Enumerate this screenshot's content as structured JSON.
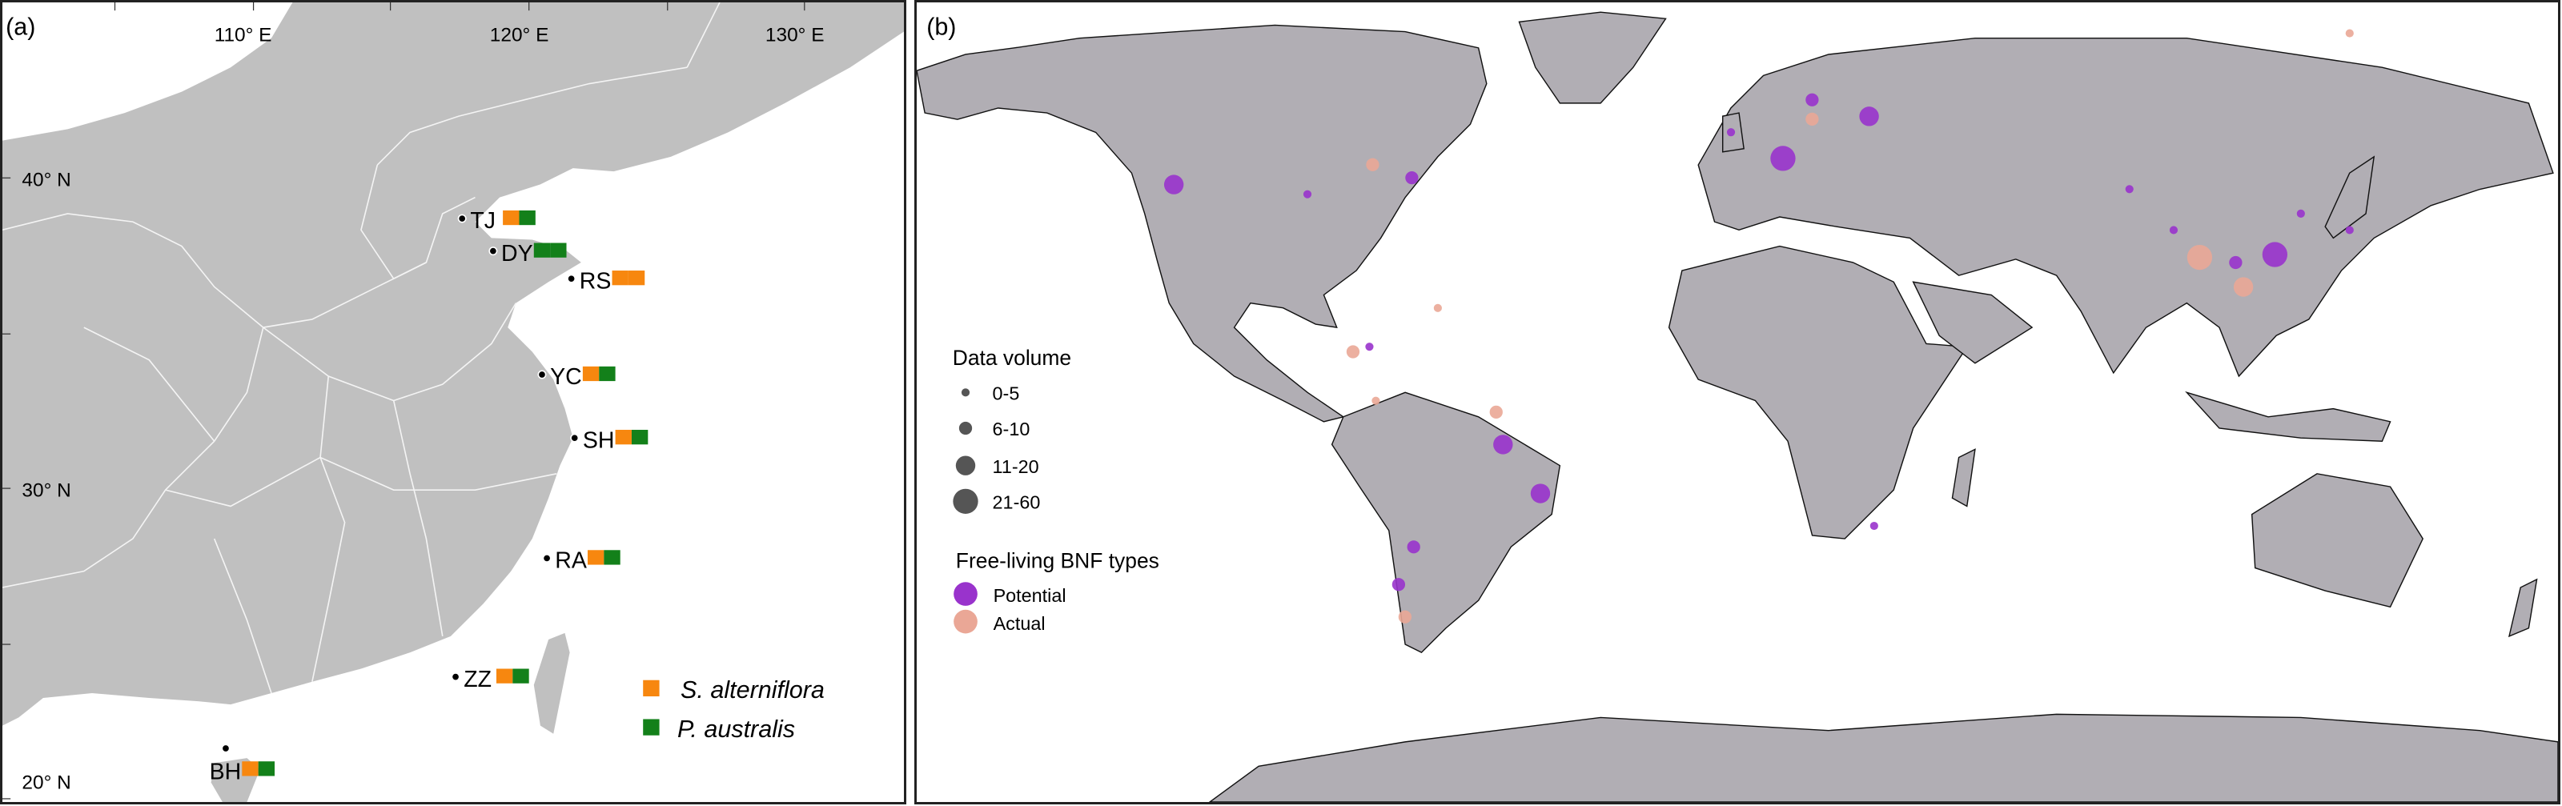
{
  "panel_a": {
    "label": "(a)",
    "lon_ticks": [
      "110° E",
      "120° E",
      "130° E"
    ],
    "lat_ticks": [
      "40° N",
      "30° N",
      "20° N"
    ],
    "sites": [
      {
        "code": "TJ",
        "species": [
          "S. alterniflora",
          "P. australis"
        ]
      },
      {
        "code": "DY",
        "species": [
          "P. australis",
          "P. australis"
        ]
      },
      {
        "code": "RS",
        "species": [
          "S. alterniflora",
          "S. alterniflora"
        ]
      },
      {
        "code": "YC",
        "species": [
          "S. alterniflora",
          "P. australis"
        ]
      },
      {
        "code": "SH",
        "species": [
          "S. alterniflora",
          "P. australis"
        ]
      },
      {
        "code": "RA",
        "species": [
          "S. alterniflora",
          "P. australis"
        ]
      },
      {
        "code": "ZZ",
        "species": [
          "S. alterniflora",
          "P. australis"
        ]
      },
      {
        "code": "BH",
        "species": [
          "S. alterniflora",
          "P. australis"
        ]
      }
    ],
    "legend": [
      {
        "label": "S. alterniflora",
        "color": "#f7870f"
      },
      {
        "label": "P. australis",
        "color": "#13801a"
      }
    ]
  },
  "panel_b": {
    "label": "(b)",
    "legend_size_title": "Data volume",
    "size_classes": [
      "0-5",
      "6-10",
      "11-20",
      "21-60"
    ],
    "legend_type_title": "Free-living BNF types",
    "types": [
      {
        "label": "Potential",
        "color": "#9933cc"
      },
      {
        "label": "Actual",
        "color": "#eaa796"
      }
    ],
    "points": [
      {
        "lon": -123.6,
        "lat": 39.4,
        "type": 0,
        "size": 2
      },
      {
        "lon": -80.7,
        "lat": 10.9,
        "type": 0,
        "size": 0
      },
      {
        "lon": -71.4,
        "lat": 40.6,
        "type": 0,
        "size": 1
      },
      {
        "lon": -51.4,
        "lat": -6.3,
        "type": 0,
        "size": 2
      },
      {
        "lon": -43.2,
        "lat": -14.9,
        "type": 0,
        "size": 2
      },
      {
        "lon": 10.0,
        "lat": 44.0,
        "type": 0,
        "size": 3
      },
      {
        "lon": 30.0,
        "lat": -20.6,
        "type": 0,
        "size": 0
      },
      {
        "lon": -71.0,
        "lat": -24.3,
        "type": 0,
        "size": 1
      },
      {
        "lon": -74.3,
        "lat": -30.9,
        "type": 0,
        "size": 1
      },
      {
        "lon": 117.9,
        "lat": 27.1,
        "type": 0,
        "size": 3
      },
      {
        "lon": 109.3,
        "lat": 25.7,
        "type": 0,
        "size": 1
      },
      {
        "lon": 134.3,
        "lat": 31.4,
        "type": 0,
        "size": 0
      },
      {
        "lon": 86.0,
        "lat": 38.6,
        "type": 0,
        "size": 0
      },
      {
        "lon": 16.4,
        "lat": 54.3,
        "type": 0,
        "size": 1
      },
      {
        "lon": -1.4,
        "lat": 48.6,
        "type": 0,
        "size": 0
      },
      {
        "lon": 28.9,
        "lat": 51.4,
        "type": 0,
        "size": 2
      },
      {
        "lon": -94.3,
        "lat": 37.7,
        "type": 0,
        "size": 0
      },
      {
        "lon": 123.6,
        "lat": 34.3,
        "type": 0,
        "size": 0
      },
      {
        "lon": 95.7,
        "lat": 31.4,
        "type": 0,
        "size": 0
      },
      {
        "lon": -80.0,
        "lat": 42.9,
        "type": 1,
        "size": 1
      },
      {
        "lon": 101.4,
        "lat": 26.6,
        "type": 1,
        "size": 3
      },
      {
        "lon": 111.0,
        "lat": 21.4,
        "type": 1,
        "size": 2
      },
      {
        "lon": 16.4,
        "lat": 50.9,
        "type": 1,
        "size": 1
      },
      {
        "lon": -84.3,
        "lat": 10.0,
        "type": 1,
        "size": 1
      },
      {
        "lon": -65.7,
        "lat": 17.7,
        "type": 1,
        "size": 0
      },
      {
        "lon": -52.9,
        "lat": -0.6,
        "type": 1,
        "size": 1
      },
      {
        "lon": -79.3,
        "lat": 1.4,
        "type": 1,
        "size": 0
      },
      {
        "lon": -72.9,
        "lat": -36.6,
        "type": 1,
        "size": 1
      },
      {
        "lon": 134.3,
        "lat": 66.0,
        "type": 1,
        "size": 0
      }
    ]
  }
}
